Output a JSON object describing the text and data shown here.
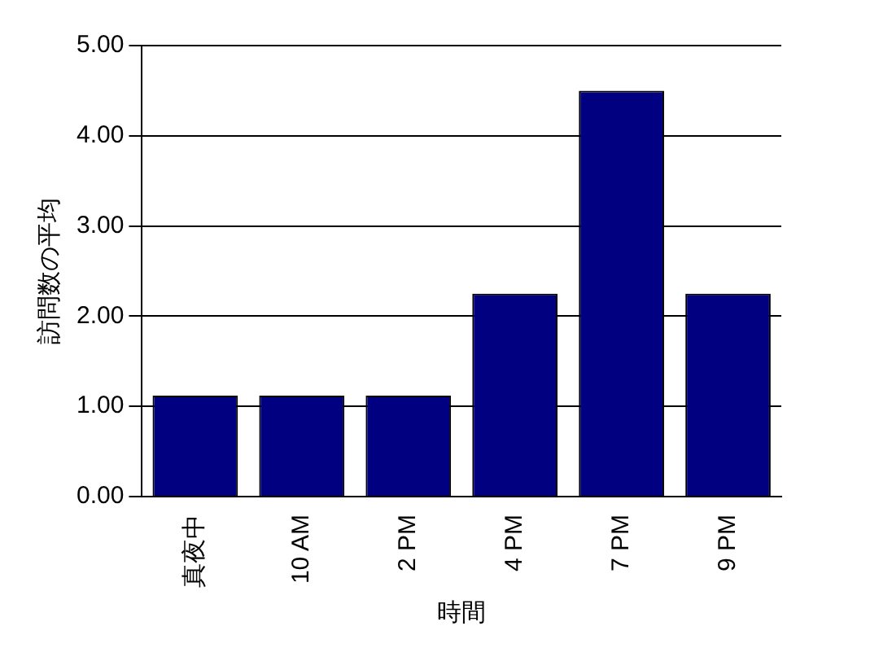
{
  "chart_data": {
    "type": "bar",
    "xlabel": "時間",
    "ylabel": "訪問数の平均",
    "categories": [
      "真夜中",
      "10 AM",
      "2 PM",
      "4 PM",
      "7 PM",
      "9 PM"
    ],
    "values": [
      1.12,
      1.12,
      1.12,
      2.25,
      4.5,
      2.25
    ],
    "color": "#000080",
    "ylim": [
      0,
      5
    ],
    "yticks": [
      {
        "value": 0,
        "label": "0.00"
      },
      {
        "value": 1,
        "label": "1.00"
      },
      {
        "value": 2,
        "label": "2.00"
      },
      {
        "value": 3,
        "label": "3.00"
      },
      {
        "value": 4,
        "label": "4.00"
      },
      {
        "value": 5,
        "label": "5.00"
      }
    ],
    "grid": "y",
    "legend": false
  }
}
